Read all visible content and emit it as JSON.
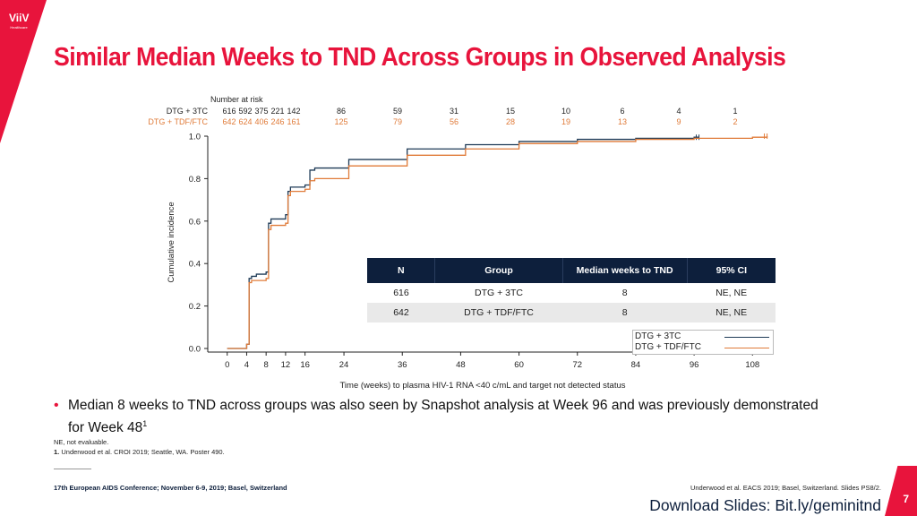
{
  "logo_text": "ViiV",
  "logo_subtext": "Healthcare",
  "title": "Similar Median Weeks to TND Across Groups in Observed Analysis",
  "colors": {
    "accent": "#e8143c",
    "navy": "#0d1f3c",
    "series1": "#1f3b57",
    "series2": "#e07b39"
  },
  "chart_data": {
    "type": "line",
    "xlabel": "Time (weeks) to plasma HIV-1 RNA <40 c/mL and target not detected status",
    "ylabel": "Cumulative incidence",
    "xticks": [
      "0",
      "4",
      "8",
      "12",
      "16",
      "24",
      "36",
      "48",
      "60",
      "72",
      "84",
      "96",
      "108"
    ],
    "yticks": [
      "0.0",
      "0.2",
      "0.4",
      "0.6",
      "0.8",
      "1.0"
    ],
    "xlim": [
      -4,
      112
    ],
    "ylim": [
      0,
      1
    ],
    "series": [
      {
        "name": "DTG + 3TC",
        "x": [
          0,
          3.5,
          4,
          4.5,
          5,
          6,
          8,
          8.5,
          9,
          12,
          12.5,
          13,
          16,
          17,
          18,
          24,
          25,
          36,
          37,
          48,
          49,
          60,
          72,
          84,
          96,
          97
        ],
        "y": [
          0,
          0,
          0.02,
          0.33,
          0.34,
          0.35,
          0.36,
          0.59,
          0.61,
          0.63,
          0.74,
          0.76,
          0.77,
          0.84,
          0.85,
          0.85,
          0.89,
          0.89,
          0.94,
          0.94,
          0.96,
          0.975,
          0.985,
          0.99,
          0.995,
          0.995
        ]
      },
      {
        "name": "DTG + TDF/FTC",
        "x": [
          0,
          3.5,
          4,
          4.5,
          5,
          8,
          8.5,
          9,
          12,
          12.5,
          13,
          16,
          17,
          18,
          24,
          25,
          36,
          37,
          48,
          49,
          60,
          72,
          84,
          96,
          108,
          111
        ],
        "y": [
          0,
          0,
          0.02,
          0.31,
          0.32,
          0.33,
          0.56,
          0.58,
          0.59,
          0.72,
          0.74,
          0.75,
          0.79,
          0.8,
          0.8,
          0.86,
          0.86,
          0.91,
          0.91,
          0.94,
          0.965,
          0.975,
          0.985,
          0.99,
          0.995,
          1.0
        ]
      }
    ]
  },
  "risk_table": {
    "title": "Number at risk",
    "rows": [
      {
        "label": "DTG + 3TC",
        "values": [
          "616",
          "592",
          "375",
          "221",
          "142",
          "86",
          "59",
          "31",
          "15",
          "10",
          "6",
          "4",
          "1"
        ]
      },
      {
        "label": "DTG + TDF/FTC",
        "values": [
          "642",
          "624",
          "406",
          "246",
          "161",
          "125",
          "79",
          "56",
          "28",
          "19",
          "13",
          "9",
          "2"
        ]
      }
    ]
  },
  "median_table": {
    "headers": [
      "N",
      "Group",
      "Median weeks to TND",
      "95% CI"
    ],
    "rows": [
      [
        "616",
        "DTG + 3TC",
        "8",
        "NE, NE"
      ],
      [
        "642",
        "DTG + TDF/FTC",
        "8",
        "NE, NE"
      ]
    ]
  },
  "legend": [
    "DTG + 3TC",
    "DTG + TDF/FTC"
  ],
  "bullet": "Median 8 weeks to TND across groups was also seen by Snapshot analysis at Week 96 and was previously demonstrated for Week 48",
  "bullet_sup": "1",
  "abbreviation": "NE, not evaluable.",
  "reference_num": "1.",
  "reference": "Underwood et al. CROI 2019; Seattle, WA. Poster 490.",
  "conference": "17th European AIDS Conference; November 6-9, 2019; Basel, Switzerland",
  "source": "Underwood et al. EACS 2019; Basel, Switzerland. Slides PS8/2.",
  "download": "Download Slides: Bit.ly/geminitnd",
  "page_number": "7"
}
